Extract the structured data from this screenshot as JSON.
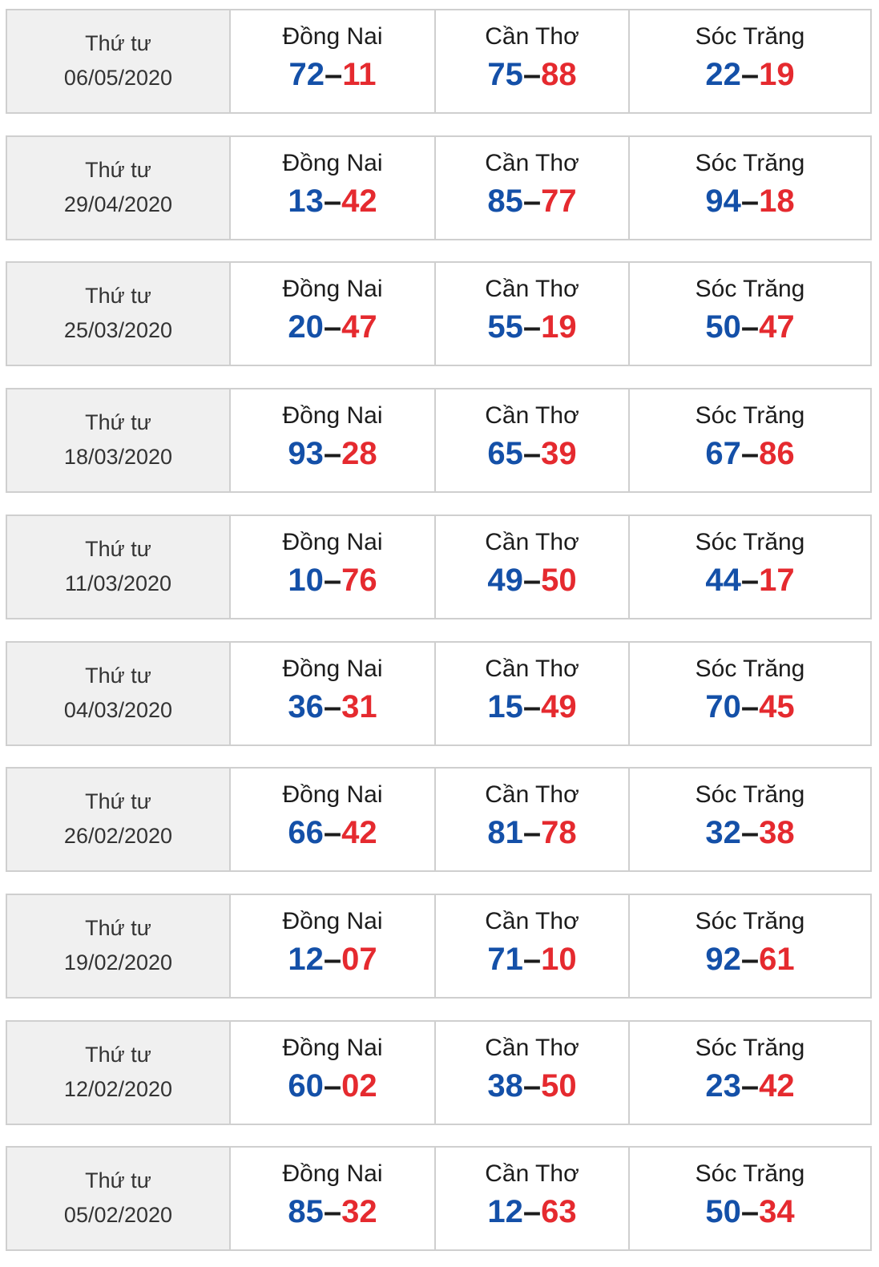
{
  "colors": {
    "first_number": "#1450a8",
    "second_number": "#e52a2f",
    "date_bg": "#f0f0f0",
    "border": "#cfcfcf"
  },
  "rows": [
    {
      "weekday": "Thứ tư",
      "date": "06/05/2020",
      "results": [
        {
          "province": "Đồng Nai",
          "first": "72",
          "sep": "–",
          "second": "11"
        },
        {
          "province": "Cần Thơ",
          "first": "75",
          "sep": "–",
          "second": "88"
        },
        {
          "province": "Sóc Trăng",
          "first": "22",
          "sep": "–",
          "second": "19"
        }
      ]
    },
    {
      "weekday": "Thứ tư",
      "date": "29/04/2020",
      "results": [
        {
          "province": "Đồng Nai",
          "first": "13",
          "sep": "–",
          "second": "42"
        },
        {
          "province": "Cần Thơ",
          "first": "85",
          "sep": "–",
          "second": "77"
        },
        {
          "province": "Sóc Trăng",
          "first": "94",
          "sep": "–",
          "second": "18"
        }
      ]
    },
    {
      "weekday": "Thứ tư",
      "date": "25/03/2020",
      "results": [
        {
          "province": "Đồng Nai",
          "first": "20",
          "sep": "–",
          "second": "47"
        },
        {
          "province": "Cần Thơ",
          "first": "55",
          "sep": "–",
          "second": "19"
        },
        {
          "province": "Sóc Trăng",
          "first": "50",
          "sep": "–",
          "second": "47"
        }
      ]
    },
    {
      "weekday": "Thứ tư",
      "date": "18/03/2020",
      "results": [
        {
          "province": "Đồng Nai",
          "first": "93",
          "sep": "–",
          "second": "28"
        },
        {
          "province": "Cần Thơ",
          "first": "65",
          "sep": "–",
          "second": "39"
        },
        {
          "province": "Sóc Trăng",
          "first": "67",
          "sep": "–",
          "second": "86"
        }
      ]
    },
    {
      "weekday": "Thứ tư",
      "date": "11/03/2020",
      "results": [
        {
          "province": "Đồng Nai",
          "first": "10",
          "sep": "–",
          "second": "76"
        },
        {
          "province": "Cần Thơ",
          "first": "49",
          "sep": "–",
          "second": "50"
        },
        {
          "province": "Sóc Trăng",
          "first": "44",
          "sep": "–",
          "second": "17"
        }
      ]
    },
    {
      "weekday": "Thứ tư",
      "date": "04/03/2020",
      "results": [
        {
          "province": "Đồng Nai",
          "first": "36",
          "sep": "–",
          "second": "31"
        },
        {
          "province": "Cần Thơ",
          "first": "15",
          "sep": "–",
          "second": "49"
        },
        {
          "province": "Sóc Trăng",
          "first": "70",
          "sep": "–",
          "second": "45"
        }
      ]
    },
    {
      "weekday": "Thứ tư",
      "date": "26/02/2020",
      "results": [
        {
          "province": "Đồng Nai",
          "first": "66",
          "sep": "–",
          "second": "42"
        },
        {
          "province": "Cần Thơ",
          "first": "81",
          "sep": "–",
          "second": "78"
        },
        {
          "province": "Sóc Trăng",
          "first": "32",
          "sep": "–",
          "second": "38"
        }
      ]
    },
    {
      "weekday": "Thứ tư",
      "date": "19/02/2020",
      "results": [
        {
          "province": "Đồng Nai",
          "first": "12",
          "sep": "–",
          "second": "07"
        },
        {
          "province": "Cần Thơ",
          "first": "71",
          "sep": "–",
          "second": "10"
        },
        {
          "province": "Sóc Trăng",
          "first": "92",
          "sep": "–",
          "second": "61"
        }
      ]
    },
    {
      "weekday": "Thứ tư",
      "date": "12/02/2020",
      "results": [
        {
          "province": "Đồng Nai",
          "first": "60",
          "sep": "–",
          "second": "02"
        },
        {
          "province": "Cần Thơ",
          "first": "38",
          "sep": "–",
          "second": "50"
        },
        {
          "province": "Sóc Trăng",
          "first": "23",
          "sep": "–",
          "second": "42"
        }
      ]
    },
    {
      "weekday": "Thứ tư",
      "date": "05/02/2020",
      "results": [
        {
          "province": "Đồng Nai",
          "first": "85",
          "sep": "–",
          "second": "32"
        },
        {
          "province": "Cần Thơ",
          "first": "12",
          "sep": "–",
          "second": "63"
        },
        {
          "province": "Sóc Trăng",
          "first": "50",
          "sep": "–",
          "second": "34"
        }
      ]
    }
  ]
}
